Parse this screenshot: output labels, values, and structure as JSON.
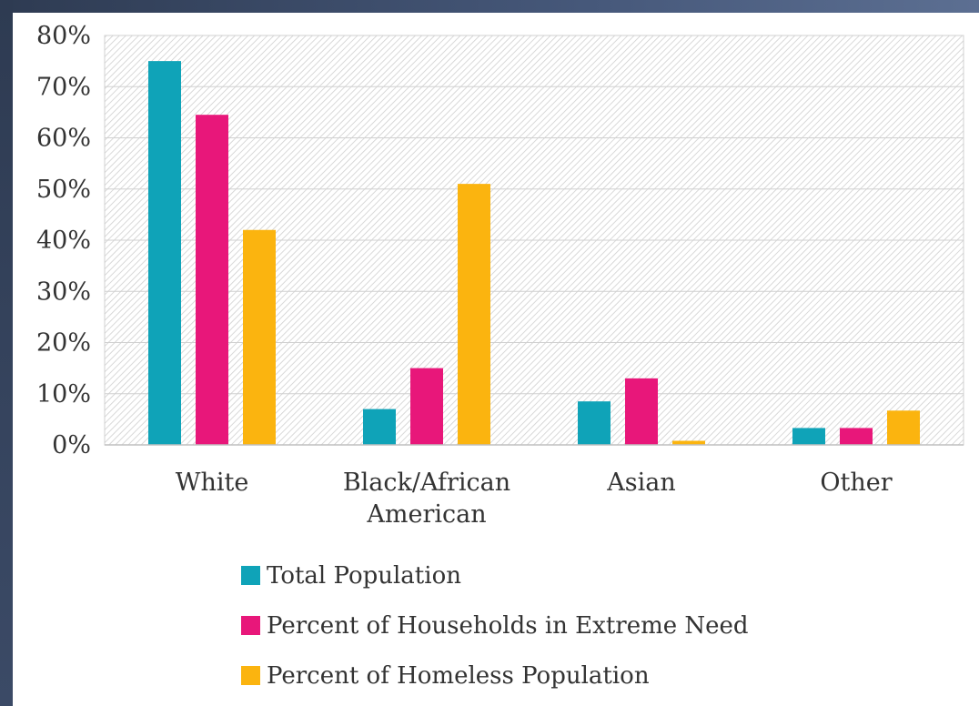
{
  "chart_data": {
    "type": "bar",
    "categories": [
      [
        "White"
      ],
      [
        "Black/African",
        "American"
      ],
      [
        "Asian"
      ],
      [
        "Other"
      ]
    ],
    "series": [
      {
        "name": "Total Population",
        "color": "#0fa3b8",
        "values": [
          75,
          7,
          8.5,
          3.3
        ]
      },
      {
        "name": "Percent of Households in Extreme Need",
        "color": "#e8177a",
        "values": [
          64.5,
          15,
          13,
          3.3
        ]
      },
      {
        "name": "Percent of Homeless Population",
        "color": "#fbb40f",
        "values": [
          42,
          51,
          0.8,
          6.7
        ]
      }
    ],
    "y_ticks": [
      "0%",
      "10%",
      "20%",
      "30%",
      "40%",
      "50%",
      "60%",
      "70%",
      "80%"
    ],
    "ylim": [
      0,
      80
    ],
    "grid": true,
    "legend_position": "bottom",
    "title": "",
    "xlabel": "",
    "ylabel": ""
  }
}
